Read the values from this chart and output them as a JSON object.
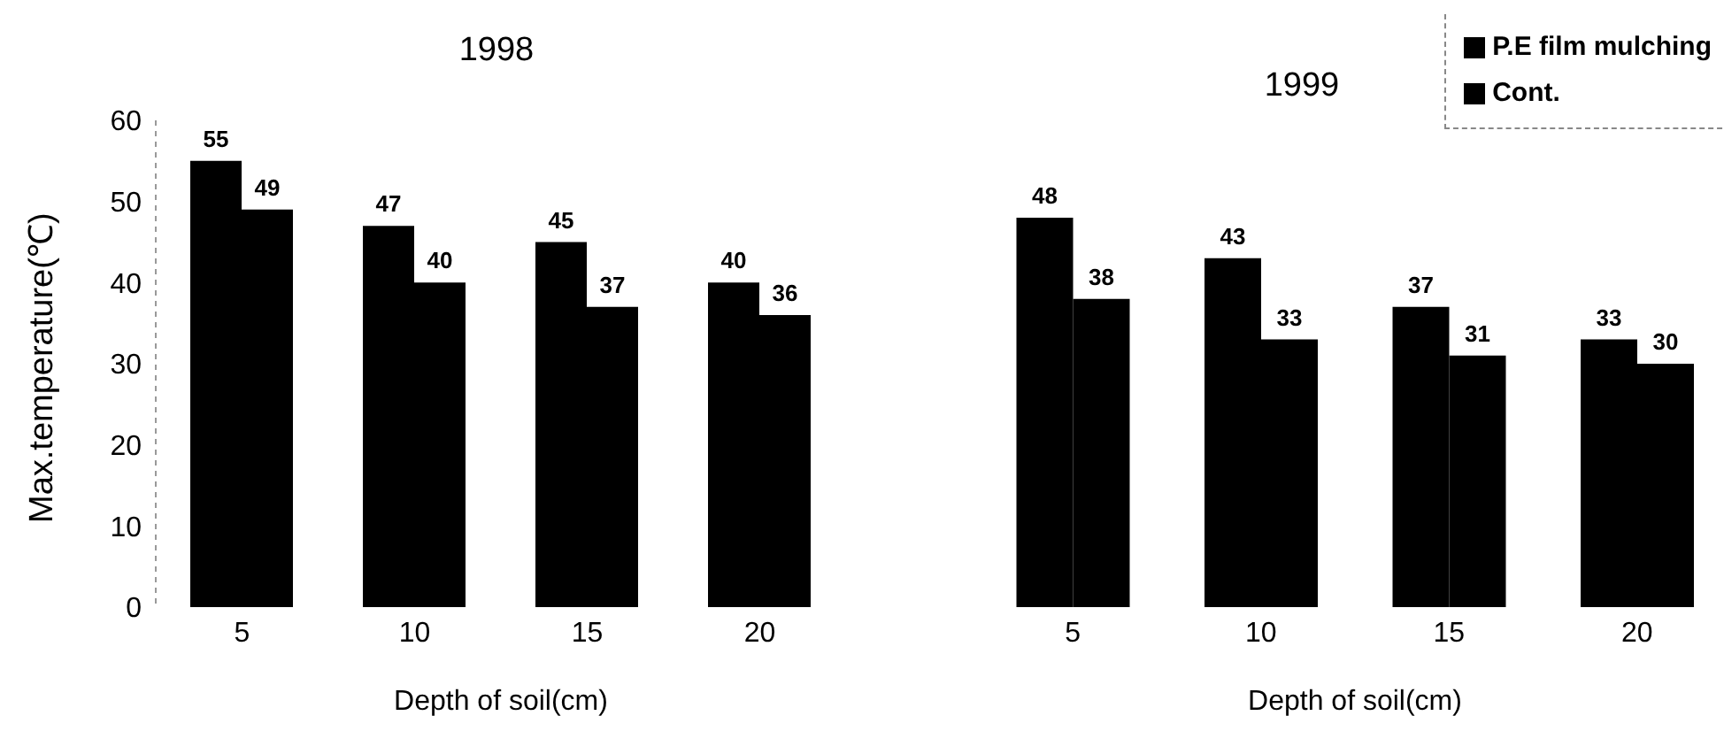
{
  "chart_data": [
    {
      "type": "bar",
      "title": "1998",
      "xlabel": "Depth of soil(cm)",
      "ylabel": "Max.temperature(℃)",
      "categories": [
        "5",
        "10",
        "15",
        "20"
      ],
      "series": [
        {
          "color": "#000000",
          "values": [
            55,
            47,
            45,
            40
          ]
        },
        {
          "color": "#000000",
          "values": [
            49,
            40,
            37,
            36
          ]
        }
      ],
      "ylim": [
        0,
        60
      ],
      "yticks": [
        0,
        10,
        20,
        30,
        40,
        50,
        60
      ],
      "data_labels": true,
      "legend": false
    },
    {
      "type": "bar",
      "title": "1999",
      "xlabel": "Depth of soil(cm)",
      "categories": [
        "5",
        "10",
        "15",
        "20"
      ],
      "series": [
        {
          "name": "P.E film mulching",
          "color": "#000000",
          "values": [
            48,
            43,
            37,
            33
          ]
        },
        {
          "name": "Cont.",
          "color": "#000000",
          "values": [
            38,
            33,
            31,
            30
          ]
        }
      ],
      "tick_labels": "x",
      "data_labels": true,
      "legend": "top right"
    }
  ]
}
